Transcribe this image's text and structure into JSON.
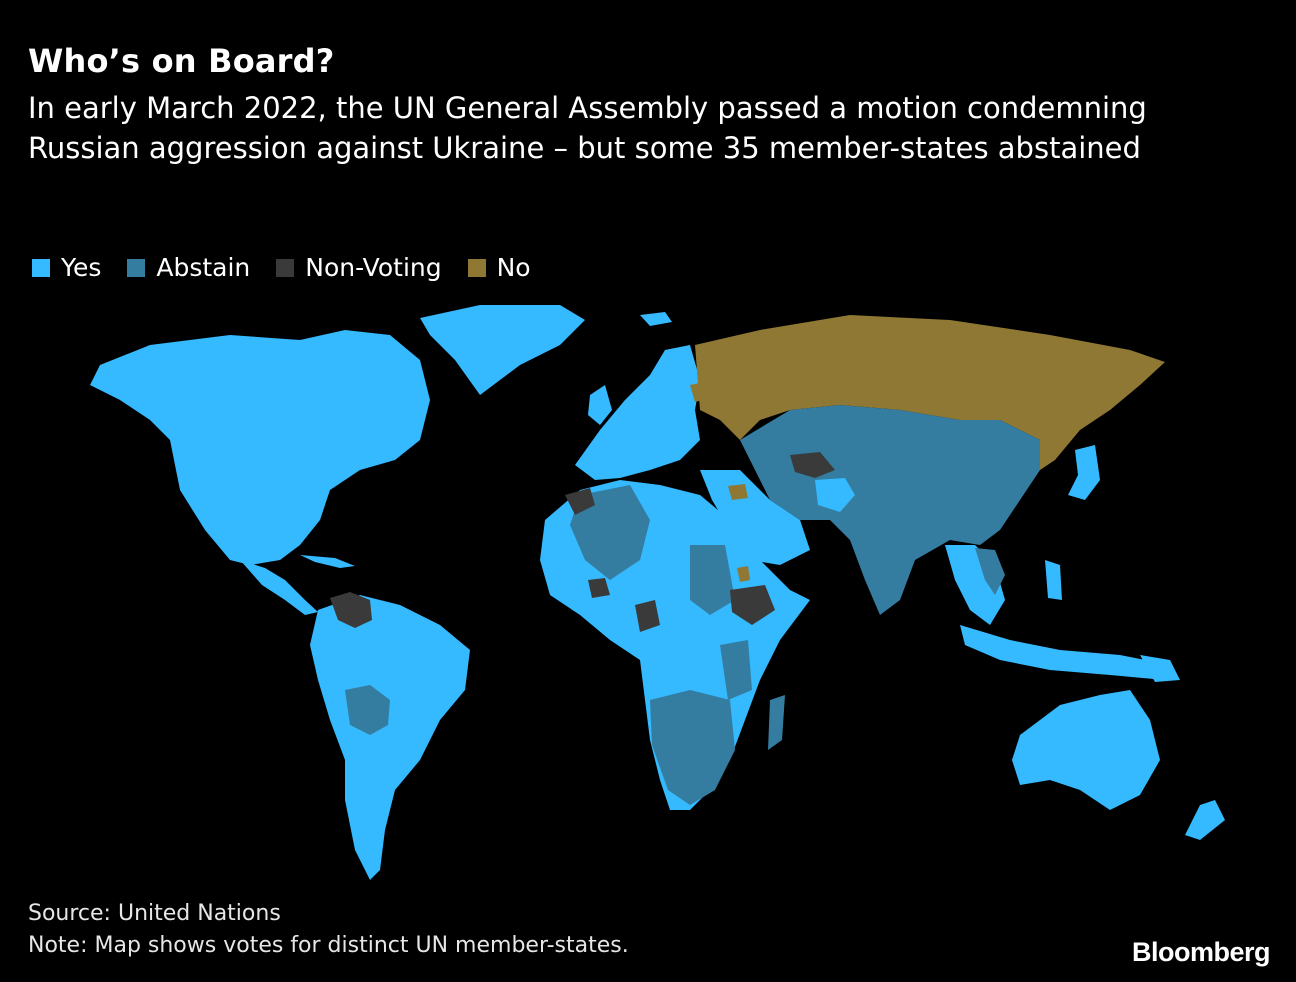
{
  "title": "Who’s on Board?",
  "subtitle": "In early March 2022, the UN General Assembly passed a motion condemning Russian aggression against Ukraine – but some 35 member-states abstained",
  "legend": {
    "yes": {
      "label": "Yes",
      "color": "#35b9ff"
    },
    "abstain": {
      "label": "Abstain",
      "color": "#347da0"
    },
    "non_voting": {
      "label": "Non-Voting",
      "color": "#3a3a3a"
    },
    "no": {
      "label": "No",
      "color": "#8e7833"
    }
  },
  "source": "Source: United Nations",
  "note": "Note: Map shows votes for distinct UN member-states.",
  "brand": "Bloomberg"
}
